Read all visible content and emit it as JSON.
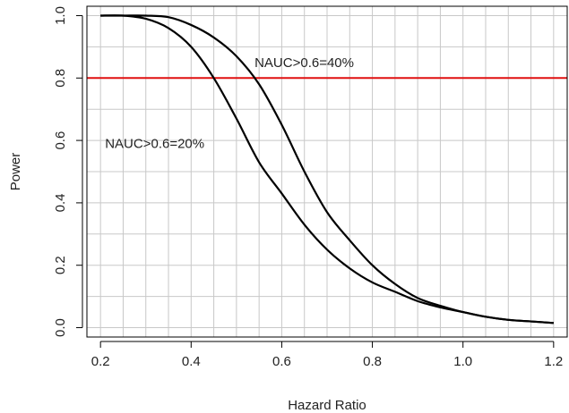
{
  "chart_data": {
    "type": "line",
    "title": "",
    "xlabel": "Hazard Ratio",
    "ylabel": "Power",
    "xlim": [
      0.17,
      1.23
    ],
    "ylim": [
      -0.03,
      1.03
    ],
    "xticks": [
      0.2,
      0.4,
      0.6,
      0.8,
      1.0,
      1.2
    ],
    "xtick_labels": [
      "0.2",
      "0.4",
      "0.6",
      "0.8",
      "1.0",
      "1.2"
    ],
    "yticks": [
      0.0,
      0.2,
      0.4,
      0.6,
      0.8,
      1.0
    ],
    "ytick_labels": [
      "0.0",
      "0.2",
      "0.4",
      "0.6",
      "0.8",
      "1.0"
    ],
    "grid": true,
    "grid_step_x": 0.05,
    "grid_step_y": 0.1,
    "legend": "none",
    "colors": {
      "series": "#000000",
      "reference": "#e01010",
      "grid": "#c8c8c8"
    },
    "series": [
      {
        "x": [
          0.2,
          0.25,
          0.3,
          0.35,
          0.4,
          0.45,
          0.5,
          0.55,
          0.6,
          0.65,
          0.7,
          0.75,
          0.8,
          0.85,
          0.9,
          0.95,
          1.0,
          1.05,
          1.1,
          1.15,
          1.2
        ],
        "y": [
          1.0,
          1.0,
          0.99,
          0.96,
          0.9,
          0.8,
          0.67,
          0.53,
          0.43,
          0.33,
          0.25,
          0.19,
          0.145,
          0.115,
          0.085,
          0.065,
          0.05,
          0.035,
          0.025,
          0.02,
          0.015
        ]
      },
      {
        "x": [
          0.2,
          0.25,
          0.3,
          0.35,
          0.4,
          0.45,
          0.5,
          0.55,
          0.6,
          0.65,
          0.7,
          0.75,
          0.8,
          0.85,
          0.9,
          0.95,
          1.0,
          1.05,
          1.1,
          1.15,
          1.2
        ],
        "y": [
          1.0,
          1.0,
          1.0,
          0.995,
          0.97,
          0.93,
          0.87,
          0.78,
          0.65,
          0.5,
          0.37,
          0.28,
          0.2,
          0.14,
          0.095,
          0.07,
          0.05,
          0.035,
          0.025,
          0.02,
          0.015
        ]
      }
    ],
    "reference_line": {
      "y": 0.8
    },
    "annotations": [
      {
        "text": "NAUC>0.6=40%",
        "x": 0.54,
        "y": 0.85
      },
      {
        "text": "NAUC>0.6=20%",
        "x": 0.21,
        "y": 0.59
      }
    ]
  }
}
